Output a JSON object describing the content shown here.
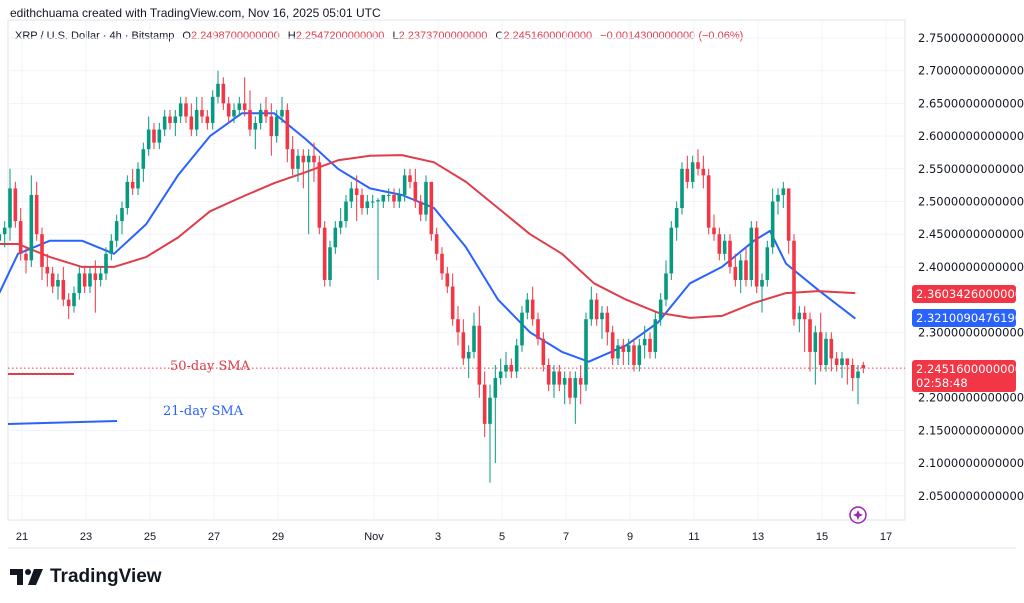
{
  "header": {
    "credit": "edithchuama created with TradingView.com, Nov 16, 2025 05:01 UTC"
  },
  "legend": {
    "symbol": "XRP / U.S. Dollar · 4h · Bitstamp",
    "o_label": "O",
    "o": "2.2498700000000",
    "h_label": "H",
    "h": "2.2547200000000",
    "l_label": "L",
    "l": "2.2373700000000",
    "c_label": "C",
    "c": "2.2451600000000",
    "change": "−0.0014300000000 (−0.06%)"
  },
  "price_tags": {
    "sma50": "2.3603426000000",
    "sma21": "2.3210090476190",
    "last": "2.2451600000000",
    "countdown": "02:58:48"
  },
  "annotations": {
    "sma50_label": "50-day SMA",
    "sma21_label": "21-day SMA"
  },
  "logo": {
    "text": "TradingView"
  },
  "colors": {
    "up": "#089981",
    "down": "#f23645",
    "sma21": "#2962ff",
    "sma50": "#e03c4a",
    "grid": "#f0f3fa",
    "tag_red": "#f23645",
    "tag_blue": "#2962ff"
  },
  "icons": {
    "replay": "sparkle-replay-icon"
  },
  "chart_data": {
    "type": "candlestick",
    "interval": "4h",
    "first_open_time": "2025-10-20T08:00",
    "y_ticks": [
      "2.7500000000000",
      "2.7000000000000",
      "2.6500000000000",
      "2.6000000000000",
      "2.5500000000000",
      "2.5000000000000",
      "2.4500000000000",
      "2.4000000000000",
      "2.3000000000000",
      "2.2000000000000",
      "2.1500000000000",
      "2.1000000000000",
      "2.0500000000000"
    ],
    "y_tick_values": [
      2.75,
      2.7,
      2.65,
      2.6,
      2.55,
      2.5,
      2.45,
      2.4,
      2.3,
      2.2,
      2.15,
      2.1,
      2.05
    ],
    "x_ticks": [
      {
        "label": "21",
        "date": "2025-10-21"
      },
      {
        "label": "23",
        "date": "2025-10-23"
      },
      {
        "label": "25",
        "date": "2025-10-25"
      },
      {
        "label": "27",
        "date": "2025-10-27"
      },
      {
        "label": "29",
        "date": "2025-10-29"
      },
      {
        "label": "Nov",
        "date": "2025-11-01"
      },
      {
        "label": "3",
        "date": "2025-11-03"
      },
      {
        "label": "5",
        "date": "2025-11-05"
      },
      {
        "label": "7",
        "date": "2025-11-07"
      },
      {
        "label": "9",
        "date": "2025-11-09"
      },
      {
        "label": "11",
        "date": "2025-11-11"
      },
      {
        "label": "13",
        "date": "2025-11-13"
      },
      {
        "label": "15",
        "date": "2025-11-15"
      },
      {
        "label": "17",
        "date": "2025-11-17"
      }
    ],
    "grid": true,
    "ohlc": [
      [
        2.44,
        2.46,
        2.43,
        2.45
      ],
      [
        2.45,
        2.47,
        2.43,
        2.46
      ],
      [
        2.46,
        2.55,
        2.44,
        2.52
      ],
      [
        2.52,
        2.53,
        2.46,
        2.47
      ],
      [
        2.47,
        2.49,
        2.41,
        2.42
      ],
      [
        2.42,
        2.43,
        2.39,
        2.41
      ],
      [
        2.41,
        2.54,
        2.4,
        2.51
      ],
      [
        2.51,
        2.53,
        2.44,
        2.45
      ],
      [
        2.45,
        2.46,
        2.38,
        2.4
      ],
      [
        2.4,
        2.42,
        2.37,
        2.39
      ],
      [
        2.39,
        2.4,
        2.36,
        2.37
      ],
      [
        2.37,
        2.39,
        2.35,
        2.38
      ],
      [
        2.38,
        2.4,
        2.34,
        2.35
      ],
      [
        2.35,
        2.36,
        2.32,
        2.34
      ],
      [
        2.34,
        2.37,
        2.33,
        2.36
      ],
      [
        2.36,
        2.4,
        2.35,
        2.39
      ],
      [
        2.39,
        2.4,
        2.36,
        2.37
      ],
      [
        2.37,
        2.4,
        2.36,
        2.39
      ],
      [
        2.39,
        2.41,
        2.33,
        2.38
      ],
      [
        2.38,
        2.4,
        2.37,
        2.39
      ],
      [
        2.39,
        2.43,
        2.38,
        2.42
      ],
      [
        2.42,
        2.45,
        2.41,
        2.44
      ],
      [
        2.44,
        2.48,
        2.43,
        2.47
      ],
      [
        2.47,
        2.5,
        2.45,
        2.49
      ],
      [
        2.49,
        2.54,
        2.48,
        2.53
      ],
      [
        2.53,
        2.55,
        2.51,
        2.52
      ],
      [
        2.52,
        2.56,
        2.51,
        2.55
      ],
      [
        2.55,
        2.59,
        2.53,
        2.58
      ],
      [
        2.58,
        2.63,
        2.57,
        2.61
      ],
      [
        2.61,
        2.62,
        2.58,
        2.59
      ],
      [
        2.59,
        2.62,
        2.58,
        2.61
      ],
      [
        2.61,
        2.64,
        2.6,
        2.63
      ],
      [
        2.63,
        2.64,
        2.61,
        2.62
      ],
      [
        2.62,
        2.64,
        2.6,
        2.63
      ],
      [
        2.63,
        2.66,
        2.62,
        2.65
      ],
      [
        2.65,
        2.66,
        2.62,
        2.63
      ],
      [
        2.63,
        2.65,
        2.6,
        2.61
      ],
      [
        2.61,
        2.66,
        2.6,
        2.64
      ],
      [
        2.64,
        2.66,
        2.62,
        2.63
      ],
      [
        2.63,
        2.64,
        2.61,
        2.62
      ],
      [
        2.62,
        2.67,
        2.61,
        2.66
      ],
      [
        2.66,
        2.7,
        2.65,
        2.68
      ],
      [
        2.68,
        2.69,
        2.64,
        2.65
      ],
      [
        2.65,
        2.66,
        2.62,
        2.63
      ],
      [
        2.63,
        2.65,
        2.62,
        2.64
      ],
      [
        2.64,
        2.66,
        2.63,
        2.65
      ],
      [
        2.65,
        2.69,
        2.63,
        2.64
      ],
      [
        2.64,
        2.67,
        2.6,
        2.61
      ],
      [
        2.61,
        2.63,
        2.58,
        2.62
      ],
      [
        2.62,
        2.65,
        2.61,
        2.64
      ],
      [
        2.64,
        2.66,
        2.62,
        2.63
      ],
      [
        2.63,
        2.65,
        2.57,
        2.6
      ],
      [
        2.6,
        2.64,
        2.59,
        2.63
      ],
      [
        2.63,
        2.66,
        2.62,
        2.64
      ],
      [
        2.64,
        2.65,
        2.56,
        2.58
      ],
      [
        2.58,
        2.6,
        2.54,
        2.55
      ],
      [
        2.55,
        2.58,
        2.53,
        2.57
      ],
      [
        2.57,
        2.58,
        2.52,
        2.56
      ],
      [
        2.56,
        2.58,
        2.45,
        2.57
      ],
      [
        2.57,
        2.59,
        2.53,
        2.56
      ],
      [
        2.56,
        2.57,
        2.45,
        2.46
      ],
      [
        2.46,
        2.47,
        2.37,
        2.38
      ],
      [
        2.38,
        2.44,
        2.37,
        2.43
      ],
      [
        2.43,
        2.47,
        2.42,
        2.46
      ],
      [
        2.46,
        2.49,
        2.45,
        2.47
      ],
      [
        2.47,
        2.51,
        2.46,
        2.5
      ],
      [
        2.5,
        2.53,
        2.49,
        2.52
      ],
      [
        2.52,
        2.54,
        2.47,
        2.51
      ],
      [
        2.51,
        2.52,
        2.48,
        2.49
      ],
      [
        2.49,
        2.51,
        2.48,
        2.5
      ],
      [
        2.5,
        2.51,
        2.49,
        2.5
      ],
      [
        2.5,
        2.505,
        2.38,
        2.502
      ],
      [
        2.5,
        2.51,
        2.49,
        2.51
      ],
      [
        2.51,
        2.52,
        2.5,
        2.51
      ],
      [
        2.51,
        2.52,
        2.49,
        2.5
      ],
      [
        2.5,
        2.52,
        2.49,
        2.51
      ],
      [
        2.51,
        2.55,
        2.5,
        2.54
      ],
      [
        2.54,
        2.55,
        2.52,
        2.53
      ],
      [
        2.53,
        2.55,
        2.49,
        2.5
      ],
      [
        2.5,
        2.51,
        2.47,
        2.48
      ],
      [
        2.48,
        2.54,
        2.47,
        2.53
      ],
      [
        2.53,
        2.53,
        2.44,
        2.45
      ],
      [
        2.45,
        2.46,
        2.41,
        2.42
      ],
      [
        2.42,
        2.43,
        2.38,
        2.39
      ],
      [
        2.39,
        2.4,
        2.36,
        2.37
      ],
      [
        2.37,
        2.39,
        2.31,
        2.32
      ],
      [
        2.32,
        2.34,
        2.28,
        2.3
      ],
      [
        2.3,
        2.32,
        2.25,
        2.26
      ],
      [
        2.26,
        2.28,
        2.23,
        2.27
      ],
      [
        2.27,
        2.33,
        2.26,
        2.31
      ],
      [
        2.31,
        2.34,
        2.2,
        2.22
      ],
      [
        2.22,
        2.24,
        2.14,
        2.16
      ],
      [
        2.16,
        2.22,
        2.07,
        2.2
      ],
      [
        2.2,
        2.25,
        2.1,
        2.23
      ],
      [
        2.23,
        2.26,
        2.22,
        2.24
      ],
      [
        2.24,
        2.27,
        2.23,
        2.25
      ],
      [
        2.25,
        2.26,
        2.23,
        2.24
      ],
      [
        2.24,
        2.29,
        2.23,
        2.28
      ],
      [
        2.28,
        2.34,
        2.27,
        2.33
      ],
      [
        2.33,
        2.36,
        2.32,
        2.35
      ],
      [
        2.35,
        2.37,
        2.31,
        2.32
      ],
      [
        2.32,
        2.33,
        2.28,
        2.29
      ],
      [
        2.29,
        2.3,
        2.24,
        2.25
      ],
      [
        2.25,
        2.26,
        2.21,
        2.22
      ],
      [
        2.22,
        2.25,
        2.2,
        2.24
      ],
      [
        2.24,
        2.25,
        2.21,
        2.22
      ],
      [
        2.22,
        2.24,
        2.19,
        2.23
      ],
      [
        2.23,
        2.24,
        2.19,
        2.2
      ],
      [
        2.2,
        2.24,
        2.16,
        2.23
      ],
      [
        2.23,
        2.25,
        2.19,
        2.22
      ],
      [
        2.22,
        2.33,
        2.21,
        2.32
      ],
      [
        2.32,
        2.37,
        2.31,
        2.35
      ],
      [
        2.35,
        2.36,
        2.31,
        2.32
      ],
      [
        2.32,
        2.34,
        2.29,
        2.33
      ],
      [
        2.33,
        2.34,
        2.28,
        2.3
      ],
      [
        2.3,
        2.31,
        2.25,
        2.26
      ],
      [
        2.26,
        2.29,
        2.25,
        2.28
      ],
      [
        2.28,
        2.29,
        2.25,
        2.27
      ],
      [
        2.27,
        2.29,
        2.25,
        2.28
      ],
      [
        2.28,
        2.29,
        2.24,
        2.25
      ],
      [
        2.25,
        2.29,
        2.24,
        2.28
      ],
      [
        2.28,
        2.31,
        2.26,
        2.29
      ],
      [
        2.29,
        2.3,
        2.26,
        2.27
      ],
      [
        2.27,
        2.33,
        2.26,
        2.32
      ],
      [
        2.32,
        2.36,
        2.31,
        2.35
      ],
      [
        2.35,
        2.41,
        2.34,
        2.39
      ],
      [
        2.39,
        2.47,
        2.38,
        2.46
      ],
      [
        2.46,
        2.5,
        2.44,
        2.49
      ],
      [
        2.49,
        2.56,
        2.48,
        2.55
      ],
      [
        2.55,
        2.57,
        2.52,
        2.53
      ],
      [
        2.53,
        2.57,
        2.52,
        2.56
      ],
      [
        2.56,
        2.58,
        2.54,
        2.55
      ],
      [
        2.55,
        2.57,
        2.52,
        2.54
      ],
      [
        2.54,
        2.55,
        2.45,
        2.46
      ],
      [
        2.46,
        2.48,
        2.44,
        2.45
      ],
      [
        2.45,
        2.46,
        2.41,
        2.42
      ],
      [
        2.42,
        2.45,
        2.41,
        2.44
      ],
      [
        2.44,
        2.45,
        2.39,
        2.4
      ],
      [
        2.4,
        2.42,
        2.37,
        2.38
      ],
      [
        2.38,
        2.42,
        2.36,
        2.41
      ],
      [
        2.41,
        2.43,
        2.37,
        2.38
      ],
      [
        2.38,
        2.47,
        2.37,
        2.46
      ],
      [
        2.46,
        2.47,
        2.36,
        2.37
      ],
      [
        2.37,
        2.39,
        2.33,
        2.38
      ],
      [
        2.38,
        2.44,
        2.37,
        2.43
      ],
      [
        2.43,
        2.52,
        2.42,
        2.5
      ],
      [
        2.5,
        2.52,
        2.48,
        2.51
      ],
      [
        2.51,
        2.53,
        2.49,
        2.52
      ],
      [
        2.52,
        2.52,
        2.42,
        2.44
      ],
      [
        2.44,
        2.45,
        2.31,
        2.32
      ],
      [
        2.32,
        2.34,
        2.3,
        2.33
      ],
      [
        2.33,
        2.34,
        2.27,
        2.32
      ],
      [
        2.32,
        2.33,
        2.24,
        2.27
      ],
      [
        2.27,
        2.31,
        2.22,
        2.3
      ],
      [
        2.3,
        2.33,
        2.24,
        2.25
      ],
      [
        2.25,
        2.3,
        2.24,
        2.29
      ],
      [
        2.29,
        2.3,
        2.24,
        2.26
      ],
      [
        2.26,
        2.27,
        2.24,
        2.25
      ],
      [
        2.25,
        2.27,
        2.23,
        2.26
      ],
      [
        2.26,
        2.26,
        2.22,
        2.25
      ],
      [
        2.25,
        2.26,
        2.21,
        2.23
      ],
      [
        2.23,
        2.25,
        2.19,
        2.24
      ]
    ],
    "last_candle": [
      2.24987,
      2.25472,
      2.23737,
      2.24516
    ],
    "series": [
      {
        "name": "21-day SMA",
        "color": "#2962ff",
        "points": [
          [
            "2025-10-20T10:00",
            2.36
          ],
          [
            "2025-10-21T00:00",
            2.42
          ],
          [
            "2025-10-22T00:00",
            2.44
          ],
          [
            "2025-10-23T00:00",
            2.44
          ],
          [
            "2025-10-24T00:00",
            2.42
          ],
          [
            "2025-10-25T00:00",
            2.465
          ],
          [
            "2025-10-26T00:00",
            2.54
          ],
          [
            "2025-10-27T00:00",
            2.6
          ],
          [
            "2025-10-28T00:00",
            2.635
          ],
          [
            "2025-10-29T00:00",
            2.635
          ],
          [
            "2025-10-30T00:00",
            2.595
          ],
          [
            "2025-10-31T00:00",
            2.55
          ],
          [
            "2025-11-01T00:00",
            2.52
          ],
          [
            "2025-11-02T00:00",
            2.51
          ],
          [
            "2025-11-03T00:00",
            2.49
          ],
          [
            "2025-11-04T00:00",
            2.43
          ],
          [
            "2025-11-05T00:00",
            2.35
          ],
          [
            "2025-11-06T00:00",
            2.3
          ],
          [
            "2025-11-07T00:00",
            2.27
          ],
          [
            "2025-11-07T20:00",
            2.255
          ],
          [
            "2025-11-09T00:00",
            2.28
          ],
          [
            "2025-11-10T00:00",
            2.315
          ],
          [
            "2025-11-11T00:00",
            2.375
          ],
          [
            "2025-11-12T00:00",
            2.4
          ],
          [
            "2025-11-13T00:00",
            2.44
          ],
          [
            "2025-11-13T12:00",
            2.455
          ],
          [
            "2025-11-14T00:00",
            2.405
          ],
          [
            "2025-11-15T00:00",
            2.365
          ],
          [
            "2025-11-16T04:00",
            2.321
          ]
        ]
      },
      {
        "name": "50-day SMA",
        "color": "#e03c4a",
        "points": [
          [
            "2025-10-20T10:00",
            2.435
          ],
          [
            "2025-10-21T00:00",
            2.435
          ],
          [
            "2025-10-22T00:00",
            2.415
          ],
          [
            "2025-10-23T00:00",
            2.4
          ],
          [
            "2025-10-24T00:00",
            2.4
          ],
          [
            "2025-10-25T00:00",
            2.415
          ],
          [
            "2025-10-26T00:00",
            2.445
          ],
          [
            "2025-10-27T00:00",
            2.485
          ],
          [
            "2025-10-28T00:00",
            2.507
          ],
          [
            "2025-10-29T00:00",
            2.528
          ],
          [
            "2025-10-30T00:00",
            2.545
          ],
          [
            "2025-10-31T00:00",
            2.563
          ],
          [
            "2025-11-01T00:00",
            2.57
          ],
          [
            "2025-11-02T00:00",
            2.571
          ],
          [
            "2025-11-03T00:00",
            2.56
          ],
          [
            "2025-11-04T00:00",
            2.53
          ],
          [
            "2025-11-05T00:00",
            2.49
          ],
          [
            "2025-11-06T00:00",
            2.45
          ],
          [
            "2025-11-07T00:00",
            2.42
          ],
          [
            "2025-11-08T00:00",
            2.375
          ],
          [
            "2025-11-09T00:00",
            2.35
          ],
          [
            "2025-11-10T00:00",
            2.33
          ],
          [
            "2025-11-11T00:00",
            2.322
          ],
          [
            "2025-11-12T00:00",
            2.325
          ],
          [
            "2025-11-13T00:00",
            2.345
          ],
          [
            "2025-11-14T00:00",
            2.36
          ],
          [
            "2025-11-15T00:00",
            2.363
          ],
          [
            "2025-11-16T04:00",
            2.36
          ]
        ]
      }
    ]
  }
}
